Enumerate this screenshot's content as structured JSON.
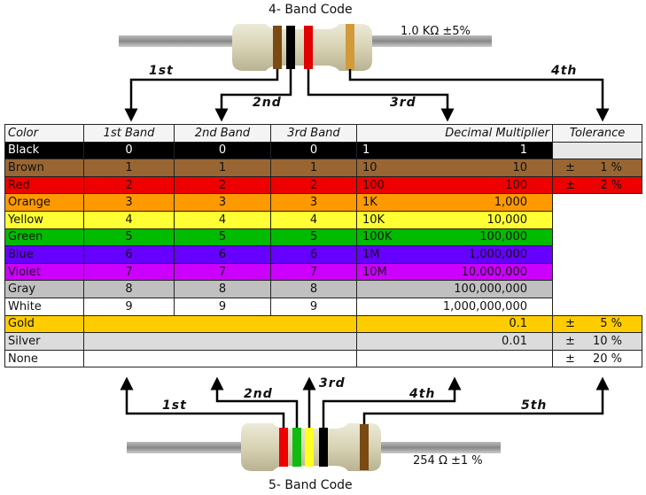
{
  "top": {
    "title": "4- Band Code",
    "value": "1.0 KΩ  ±5%",
    "labels": [
      "1st",
      "2nd",
      "3rd",
      "4th"
    ],
    "bands": [
      "#7a4a12",
      "#000000",
      "#e00000",
      "#d29a3a"
    ]
  },
  "bottom": {
    "title": "5- Band Code",
    "value": "254 Ω  ±1 %",
    "labels": [
      "1st",
      "2nd",
      "3rd",
      "4th",
      "5th"
    ],
    "bands": [
      "#ee0000",
      "#11bb11",
      "#ffff22",
      "#000000",
      "#7a4a12"
    ]
  },
  "table": {
    "headers": [
      "Color",
      "1st Band",
      "2nd Band",
      "3rd Band",
      "Decimal Multiplier",
      "Tolerance"
    ],
    "rows": [
      {
        "color": "Black",
        "bg": "#000000",
        "fg": "#ffffff",
        "b1": "0",
        "b2": "0",
        "b3": "0",
        "mult_short": "1",
        "mult": "1",
        "tol": "",
        "tol_bg": "#e8e8e8"
      },
      {
        "color": "Brown",
        "bg": "#996633",
        "fg": "#111111",
        "b1": "1",
        "b2": "1",
        "b3": "1",
        "mult_short": "10",
        "mult": "10",
        "tol": "1 %",
        "tol_bg": "#996633"
      },
      {
        "color": "Red",
        "bg": "#ee0000",
        "fg": "#330000",
        "b1": "2",
        "b2": "2",
        "b3": "2",
        "mult_short": "100",
        "mult": "100",
        "tol": "2 %",
        "tol_bg": "#ee0000"
      },
      {
        "color": "Orange",
        "bg": "#ff9900",
        "fg": "#111111",
        "b1": "3",
        "b2": "3",
        "b3": "3",
        "mult_short": "1K",
        "mult": "1,000",
        "tol": null,
        "tol_bg": "#e8e8e8"
      },
      {
        "color": "Yellow",
        "bg": "#ffff33",
        "fg": "#111111",
        "b1": "4",
        "b2": "4",
        "b3": "4",
        "mult_short": "10K",
        "mult": "10,000",
        "tol": null
      },
      {
        "color": "Green",
        "bg": "#00bb00",
        "fg": "#111111",
        "b1": "5",
        "b2": "5",
        "b3": "5",
        "mult_short": "100K",
        "mult": "100,000",
        "tol": null
      },
      {
        "color": "Blue",
        "bg": "#6600ff",
        "fg": "#111111",
        "b1": "6",
        "b2": "6",
        "b3": "6",
        "mult_short": "1M",
        "mult": "1,000,000",
        "tol": null
      },
      {
        "color": "Violet",
        "bg": "#cc00ff",
        "fg": "#111111",
        "b1": "7",
        "b2": "7",
        "b3": "7",
        "mult_short": "10M",
        "mult": "10,000,000",
        "tol": null
      },
      {
        "color": "Gray",
        "bg": "#c0c0c0",
        "fg": "#111111",
        "b1": "8",
        "b2": "8",
        "b3": "8",
        "mult_short": "",
        "mult": "100,000,000",
        "tol": null
      },
      {
        "color": "White",
        "bg": "#ffffff",
        "fg": "#111111",
        "b1": "9",
        "b2": "9",
        "b3": "9",
        "mult_short": "",
        "mult": "1,000,000,000",
        "tol": null
      },
      {
        "color": "Gold",
        "bg": "#ffcc00",
        "fg": "#111111",
        "mult": "0.1",
        "tol": "5 %",
        "tol_bg": "#ffcc00"
      },
      {
        "color": "Silver",
        "bg": "#dcdcdc",
        "fg": "#111111",
        "mult": "0.01",
        "tol": "10 %",
        "tol_bg": "#dcdcdc"
      },
      {
        "color": "None",
        "bg": "#ffffff",
        "fg": "#111111",
        "mult": "",
        "tol": "20 %",
        "tol_bg": "#ffffff"
      }
    ],
    "tol_symbol": "±"
  }
}
